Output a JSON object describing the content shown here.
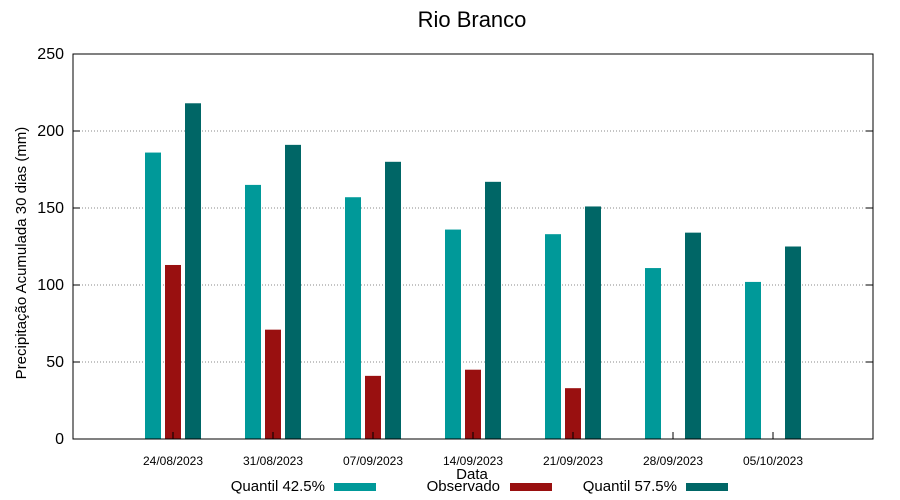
{
  "chart_data": {
    "type": "bar",
    "title": "Rio Branco",
    "xlabel": "Data",
    "ylabel": "Precipitação Acumulada 30 dias (mm)",
    "ylim": [
      0,
      250
    ],
    "yticks": [
      "0",
      "50",
      "100",
      "150",
      "200",
      "250"
    ],
    "grid": true,
    "legend_position": "bottom",
    "categories": [
      "24/08/2023",
      "31/08/2023",
      "07/09/2023",
      "14/09/2023",
      "21/09/2023",
      "28/09/2023",
      "05/10/2023"
    ],
    "series": [
      {
        "name": "Quantil 42.5%",
        "color": "#009999",
        "values": [
          186,
          165,
          157,
          136,
          133,
          111,
          102
        ]
      },
      {
        "name": "Observado",
        "color": "#991010",
        "values": [
          113,
          71,
          41,
          45,
          33,
          null,
          null
        ]
      },
      {
        "name": "Quantil 57.5%",
        "color": "#006666",
        "values": [
          218,
          191,
          180,
          167,
          151,
          134,
          125
        ]
      }
    ]
  }
}
